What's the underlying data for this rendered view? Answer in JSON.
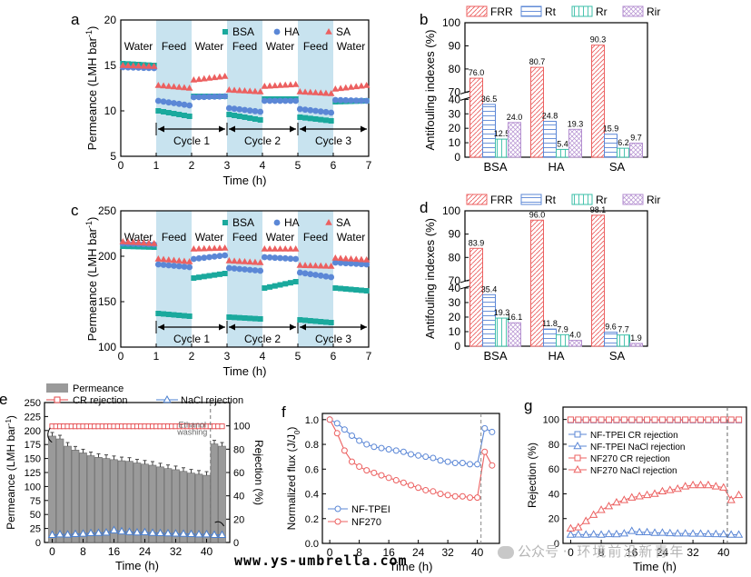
{
  "colors": {
    "bsa": "#1aa99d",
    "ha": "#5b87d6",
    "sa": "#ec6060",
    "feed": "#c8e3ef",
    "bar_gray": "#9a9a9a",
    "cr": "#e4474a",
    "nacl": "#4a7fd0",
    "purple": "#b48fd0",
    "teal": "#3bbfa8"
  },
  "watermark": {
    "left": "www.ys-umbrella.com",
    "right_prefix": "公众号 ·",
    "right": "环境前沿新青年"
  },
  "chart_data": [
    {
      "panel": "a",
      "type": "scatter",
      "xlabel": "Time (h)",
      "ylabel": "Permeance (LMH bar-1)",
      "xlim": [
        0,
        7
      ],
      "ylim": [
        5,
        20
      ],
      "xticks": [
        0,
        1,
        2,
        3,
        4,
        5,
        6,
        7
      ],
      "yticks": [
        5,
        10,
        15,
        20
      ],
      "phase_labels": [
        "Water",
        "Feed",
        "Water",
        "Feed",
        "Water",
        "Feed",
        "Water"
      ],
      "cycle_labels": [
        "Cycle 1",
        "Cycle 2",
        "Cycle 3"
      ],
      "legend": [
        "BSA",
        "HA",
        "SA"
      ],
      "segments": {
        "BSA": [
          [
            15.2,
            15.0
          ],
          [
            10.0,
            9.4
          ],
          [
            11.6,
            11.6
          ],
          [
            9.6,
            9.0
          ],
          [
            11.3,
            11.3
          ],
          [
            9.3,
            8.9
          ],
          [
            11.0,
            11.1
          ]
        ],
        "HA": [
          [
            14.8,
            14.7
          ],
          [
            11.1,
            10.6
          ],
          [
            11.5,
            11.6
          ],
          [
            10.3,
            9.9
          ],
          [
            11.1,
            11.1
          ],
          [
            10.2,
            9.8
          ],
          [
            11.2,
            11.1
          ]
        ],
        "SA": [
          [
            15.0,
            14.9
          ],
          [
            12.8,
            12.5
          ],
          [
            13.4,
            13.8
          ],
          [
            12.3,
            12.1
          ],
          [
            12.7,
            12.9
          ],
          [
            12.1,
            11.9
          ],
          [
            12.4,
            12.8
          ]
        ]
      },
      "cycle_arrow_y": 8.0
    },
    {
      "panel": "b",
      "type": "bar",
      "ylabel": "Antifouling indexes (%)",
      "categories": [
        "BSA",
        "HA",
        "SA"
      ],
      "legend": [
        "FRR",
        "Rt",
        "Rr",
        "Rir"
      ],
      "lower_ticks": [
        0,
        10,
        20,
        30,
        40
      ],
      "upper_ticks": [
        70,
        80,
        90,
        100
      ],
      "series": [
        {
          "name": "FRR",
          "values": [
            76.0,
            80.7,
            90.3
          ],
          "labels": [
            "76.0",
            "80.7",
            "90.3"
          ]
        },
        {
          "name": "Rt",
          "values": [
            36.5,
            24.8,
            15.9
          ],
          "labels": [
            "36.5",
            "24.8",
            "15.9"
          ]
        },
        {
          "name": "Rr",
          "values": [
            12.5,
            5.4,
            6.2
          ],
          "labels": [
            "12.5",
            "5.4",
            "6.2"
          ]
        },
        {
          "name": "Rir",
          "values": [
            24.0,
            19.3,
            9.7
          ],
          "labels": [
            "24.0",
            "19.3",
            "9.7"
          ]
        }
      ]
    },
    {
      "panel": "c",
      "type": "scatter",
      "xlabel": "Time (h)",
      "ylabel": "Permeance (LMH bar-1)",
      "xlim": [
        0,
        7
      ],
      "ylim": [
        100,
        250
      ],
      "xticks": [
        0,
        1,
        2,
        3,
        4,
        5,
        6,
        7
      ],
      "yticks": [
        100,
        150,
        200,
        250
      ],
      "phase_labels": [
        "Water",
        "Feed",
        "Water",
        "Feed",
        "Water",
        "Feed",
        "Water"
      ],
      "cycle_labels": [
        "Cycle 1",
        "Cycle 2",
        "Cycle 3"
      ],
      "legend": [
        "BSA",
        "HA",
        "SA"
      ],
      "segments": {
        "BSA": [
          [
            211,
            210
          ],
          [
            137,
            134
          ],
          [
            176,
            181
          ],
          [
            133,
            131
          ],
          [
            165,
            172
          ],
          [
            130,
            127
          ],
          [
            165,
            162
          ]
        ],
        "HA": [
          [
            214,
            213
          ],
          [
            191,
            188
          ],
          [
            197,
            201
          ],
          [
            187,
            184
          ],
          [
            199,
            197
          ],
          [
            182,
            177
          ],
          [
            193,
            191
          ]
        ],
        "SA": [
          [
            216,
            214
          ],
          [
            197,
            194
          ],
          [
            208,
            209
          ],
          [
            195,
            193
          ],
          [
            208,
            208
          ],
          [
            190,
            189
          ],
          [
            198,
            196
          ]
        ]
      },
      "cycle_arrow_y": 122
    },
    {
      "panel": "d",
      "type": "bar",
      "ylabel": "Antifouling indexes (%)",
      "categories": [
        "BSA",
        "HA",
        "SA"
      ],
      "legend": [
        "FRR",
        "Rt",
        "Rr",
        "Rir"
      ],
      "lower_ticks": [
        0,
        10,
        20,
        30,
        40
      ],
      "upper_ticks": [
        70,
        80,
        90,
        100
      ],
      "series": [
        {
          "name": "FRR",
          "values": [
            83.9,
            96.0,
            98.1
          ],
          "labels": [
            "83.9",
            "96.0",
            "98.1"
          ]
        },
        {
          "name": "Rt",
          "values": [
            35.4,
            11.8,
            9.6
          ],
          "labels": [
            "35.4",
            "11.8",
            "9.6"
          ]
        },
        {
          "name": "Rr",
          "values": [
            19.3,
            7.9,
            7.7
          ],
          "labels": [
            "19.3",
            "7.9",
            "7.7"
          ]
        },
        {
          "name": "Rir",
          "values": [
            16.1,
            4.0,
            1.9
          ],
          "labels": [
            "16.1",
            "4.0",
            "1.9"
          ]
        }
      ]
    },
    {
      "panel": "e",
      "type": "bar+line",
      "xlabel": "Time (h)",
      "ylabel": "Permeance (LMH bar-1)",
      "y2label": "Rejection (%)",
      "xlim": [
        -2,
        46
      ],
      "ylim": [
        0,
        250
      ],
      "y2lim": [
        0,
        120
      ],
      "xticks": [
        0,
        8,
        16,
        24,
        32,
        40
      ],
      "yticks": [
        0,
        25,
        50,
        75,
        100,
        125,
        150,
        175,
        200,
        225,
        250
      ],
      "y2ticks": [
        0,
        20,
        40,
        60,
        80,
        100
      ],
      "legend": [
        "Permeance",
        "CR rejection",
        "NaCl rejection"
      ],
      "annotation": "Ethanol washing",
      "bar_x": [
        0,
        2,
        4,
        6,
        8,
        10,
        12,
        14,
        16,
        18,
        20,
        22,
        24,
        26,
        28,
        30,
        32,
        34,
        36,
        38,
        40,
        42,
        44
      ],
      "permeance": [
        190,
        185,
        172,
        165,
        160,
        155,
        152,
        150,
        148,
        146,
        145,
        142,
        140,
        138,
        135,
        132,
        130,
        127,
        124,
        122,
        120,
        176,
        172
      ],
      "cr_x": [
        0,
        1,
        2,
        3,
        4,
        5,
        6,
        7,
        8,
        9,
        10,
        11,
        12,
        13,
        14,
        15,
        16,
        17,
        18,
        19,
        20,
        21,
        22,
        23,
        24,
        25,
        26,
        27,
        28,
        29,
        30,
        31,
        32,
        33,
        34,
        35,
        36,
        37,
        38,
        39,
        40,
        41,
        42,
        43,
        44
      ],
      "cr_rejection": [
        99.6,
        99.6,
        99.6,
        99.6,
        99.6,
        99.6,
        99.6,
        99.6,
        99.6,
        99.6,
        99.6,
        99.6,
        99.6,
        99.6,
        99.6,
        99.6,
        99.6,
        99.6,
        99.6,
        99.6,
        99.6,
        99.6,
        99.6,
        99.6,
        99.6,
        99.6,
        99.6,
        99.6,
        99.6,
        99.6,
        99.6,
        99.6,
        99.6,
        99.6,
        99.6,
        99.6,
        99.6,
        99.6,
        99.6,
        99.6,
        99.6,
        99.6,
        99.6,
        99.6,
        99.6
      ],
      "nacl_x": [
        0,
        2,
        4,
        6,
        8,
        10,
        12,
        14,
        16,
        18,
        20,
        22,
        24,
        26,
        28,
        30,
        32,
        34,
        36,
        38,
        40,
        42,
        44
      ],
      "nacl_rejection": [
        6.5,
        7.0,
        6.8,
        7.2,
        7.5,
        8.0,
        8.2,
        8.5,
        10.5,
        9.5,
        9.0,
        8.6,
        8.8,
        8.2,
        8.0,
        7.8,
        7.6,
        7.4,
        7.2,
        7.0,
        7.0,
        6.5,
        6.5
      ],
      "washing_x": 41
    },
    {
      "panel": "f",
      "type": "line",
      "xlabel": "Time (h)",
      "ylabel": "Normalized flux (J/J0)",
      "xlim": [
        -2,
        46
      ],
      "ylim": [
        0,
        1.05
      ],
      "xticks": [
        0,
        8,
        16,
        24,
        32,
        40
      ],
      "yticks": [
        0,
        0.2,
        0.4,
        0.6,
        0.8,
        1.0
      ],
      "legend": [
        "NF-TPEI",
        "NF270"
      ],
      "x": [
        0,
        2,
        4,
        6,
        8,
        10,
        12,
        14,
        16,
        18,
        20,
        22,
        24,
        26,
        28,
        30,
        32,
        34,
        36,
        38,
        40,
        42,
        44
      ],
      "series": [
        {
          "name": "NF-TPEI",
          "values": [
            1.0,
            0.97,
            0.92,
            0.87,
            0.83,
            0.8,
            0.78,
            0.77,
            0.76,
            0.75,
            0.74,
            0.72,
            0.71,
            0.7,
            0.69,
            0.67,
            0.66,
            0.65,
            0.65,
            0.64,
            0.64,
            0.93,
            0.9
          ]
        },
        {
          "name": "NF270",
          "values": [
            1.0,
            0.89,
            0.75,
            0.66,
            0.62,
            0.59,
            0.57,
            0.55,
            0.53,
            0.51,
            0.49,
            0.47,
            0.45,
            0.43,
            0.42,
            0.4,
            0.39,
            0.38,
            0.38,
            0.37,
            0.37,
            0.74,
            0.63
          ]
        }
      ],
      "washing_x": 41
    },
    {
      "panel": "g",
      "type": "line",
      "xlabel": "Time (h)",
      "ylabel": "Rejection (%)",
      "xlim": [
        -2,
        46
      ],
      "ylim": [
        0,
        110
      ],
      "xticks": [
        0,
        8,
        16,
        24,
        32,
        40
      ],
      "yticks": [
        0,
        20,
        40,
        60,
        80,
        100
      ],
      "legend": [
        "NF-TPEI CR rejection",
        "NF-TPEI NaCl rejection",
        "NF270 CR rejection",
        "NF270 NaCl rejection"
      ],
      "x": [
        0,
        2,
        4,
        6,
        8,
        10,
        12,
        14,
        16,
        18,
        20,
        22,
        24,
        26,
        28,
        30,
        32,
        34,
        36,
        38,
        40,
        42,
        44
      ],
      "series": [
        {
          "name": "NF-TPEI CR rejection",
          "values": [
            99.5,
            99.5,
            99.5,
            99.5,
            99.5,
            99.5,
            99.5,
            99.5,
            99.5,
            99.5,
            99.5,
            99.5,
            99.5,
            99.5,
            99.5,
            99.5,
            99.5,
            99.5,
            99.5,
            99.5,
            99.5,
            99.5,
            99.5
          ]
        },
        {
          "name": "NF-TPEI NaCl rejection",
          "values": [
            7.0,
            7.2,
            7.0,
            7.3,
            7.0,
            7.5,
            7.4,
            8.0,
            10.0,
            9.0,
            9.0,
            8.5,
            8.6,
            8.2,
            8.0,
            8.0,
            7.8,
            7.8,
            7.6,
            7.5,
            7.4,
            7.0,
            7.0
          ]
        },
        {
          "name": "NF270 CR rejection",
          "values": [
            99.8,
            99.8,
            99.8,
            99.8,
            99.8,
            99.8,
            99.8,
            99.8,
            99.8,
            99.8,
            99.8,
            99.8,
            99.8,
            99.8,
            99.8,
            99.8,
            99.8,
            99.8,
            99.8,
            99.8,
            99.8,
            99.8,
            99.8
          ]
        },
        {
          "name": "NF270 NaCl rejection",
          "values": [
            12,
            13,
            18,
            23,
            27,
            30,
            33,
            35,
            37,
            38,
            39,
            40,
            42,
            43,
            44,
            46,
            47,
            47,
            47,
            46,
            45,
            35,
            39
          ]
        }
      ],
      "washing_x": 41
    }
  ]
}
